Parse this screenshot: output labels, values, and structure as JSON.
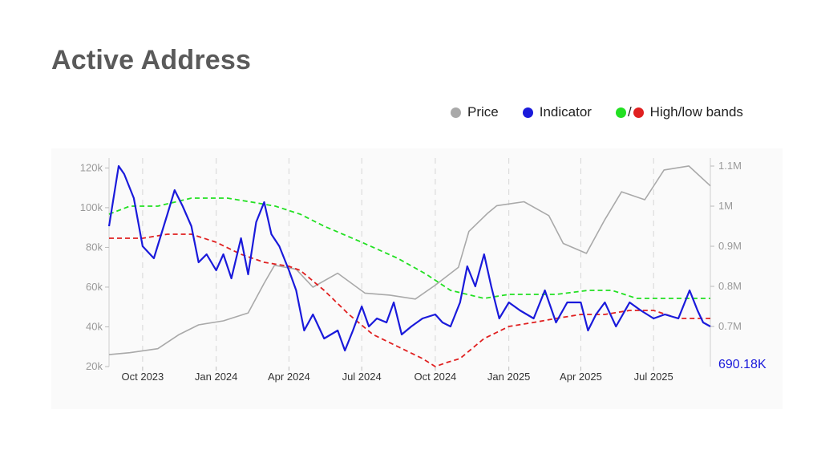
{
  "title": "Active Address",
  "legend": {
    "price": "Price",
    "indicator": "Indicator",
    "slash": "/",
    "bands": "High/low bands"
  },
  "colors": {
    "price": "#a9a9a9",
    "indicator": "#1a1adb",
    "high_band": "#22e022",
    "low_band": "#e02020",
    "title": "#5a5a5a",
    "last_value": "#1a1adb"
  },
  "chart_data": {
    "type": "line",
    "x_ticks": [
      "Oct 2023",
      "Jan 2024",
      "Apr 2024",
      "Jul 2024",
      "Oct 2024",
      "Jan 2025",
      "Apr 2025",
      "Jul 2025"
    ],
    "x_range": [
      "2023-08-20",
      "2025-09-10"
    ],
    "y_left": {
      "ticks": [
        "20k",
        "40k",
        "60k",
        "80k",
        "100k",
        "120k"
      ],
      "range": [
        20000,
        125000
      ]
    },
    "y_right": {
      "ticks": [
        "0.7M",
        "0.8M",
        "0.9M",
        "1M",
        "1.1M"
      ],
      "range": [
        0.6,
        1.12
      ]
    },
    "last_value_label": "690.18K",
    "series": [
      {
        "name": "Price",
        "axis": "left",
        "x": [
          "2023-08-20",
          "2023-09-15",
          "2023-10-20",
          "2023-11-15",
          "2023-12-10",
          "2024-01-10",
          "2024-02-10",
          "2024-03-01",
          "2024-03-14",
          "2024-04-10",
          "2024-05-01",
          "2024-06-01",
          "2024-07-05",
          "2024-08-05",
          "2024-09-06",
          "2024-10-01",
          "2024-10-30",
          "2024-11-12",
          "2024-12-05",
          "2024-12-17",
          "2025-01-20",
          "2025-02-20",
          "2025-03-10",
          "2025-04-08",
          "2025-05-01",
          "2025-05-22",
          "2025-06-20",
          "2025-07-14",
          "2025-08-14",
          "2025-09-10"
        ],
        "y": [
          26000,
          27000,
          29000,
          36000,
          41000,
          43000,
          47000,
          62000,
          71000,
          69000,
          60000,
          67000,
          57000,
          56000,
          54000,
          61000,
          70000,
          88000,
          97000,
          101000,
          103000,
          96000,
          82000,
          77000,
          94000,
          108000,
          104000,
          119000,
          121000,
          111000
        ]
      },
      {
        "name": "Indicator",
        "axis": "right",
        "x": [
          "2023-08-20",
          "2023-09-01",
          "2023-09-08",
          "2023-09-20",
          "2023-10-01",
          "2023-10-15",
          "2023-11-01",
          "2023-11-10",
          "2023-11-20",
          "2023-12-01",
          "2023-12-10",
          "2023-12-20",
          "2024-01-01",
          "2024-01-10",
          "2024-01-20",
          "2024-02-01",
          "2024-02-10",
          "2024-02-20",
          "2024-03-01",
          "2024-03-10",
          "2024-03-20",
          "2024-04-01",
          "2024-04-10",
          "2024-04-20",
          "2024-05-01",
          "2024-05-15",
          "2024-06-01",
          "2024-06-10",
          "2024-06-20",
          "2024-07-01",
          "2024-07-10",
          "2024-07-20",
          "2024-08-01",
          "2024-08-10",
          "2024-08-20",
          "2024-09-01",
          "2024-09-15",
          "2024-10-01",
          "2024-10-10",
          "2024-10-20",
          "2024-11-01",
          "2024-11-10",
          "2024-11-20",
          "2024-12-01",
          "2024-12-10",
          "2024-12-20",
          "2025-01-01",
          "2025-01-15",
          "2025-02-01",
          "2025-02-15",
          "2025-03-01",
          "2025-03-15",
          "2025-04-01",
          "2025-04-10",
          "2025-04-20",
          "2025-05-01",
          "2025-05-15",
          "2025-06-01",
          "2025-06-15",
          "2025-07-01",
          "2025-07-15",
          "2025-08-01",
          "2025-08-15",
          "2025-08-25",
          "2025-09-01",
          "2025-09-10"
        ],
        "y": [
          0.95,
          1.1,
          1.08,
          1.02,
          0.9,
          0.87,
          0.98,
          1.04,
          1.0,
          0.95,
          0.86,
          0.88,
          0.84,
          0.88,
          0.82,
          0.92,
          0.83,
          0.96,
          1.01,
          0.93,
          0.9,
          0.84,
          0.79,
          0.69,
          0.73,
          0.67,
          0.69,
          0.64,
          0.69,
          0.75,
          0.7,
          0.72,
          0.71,
          0.76,
          0.68,
          0.7,
          0.72,
          0.73,
          0.71,
          0.7,
          0.76,
          0.85,
          0.8,
          0.88,
          0.8,
          0.72,
          0.76,
          0.74,
          0.72,
          0.79,
          0.71,
          0.76,
          0.76,
          0.69,
          0.73,
          0.76,
          0.7,
          0.76,
          0.74,
          0.72,
          0.73,
          0.72,
          0.79,
          0.74,
          0.71,
          0.7
        ]
      },
      {
        "name": "High band",
        "axis": "right",
        "x": [
          "2023-08-20",
          "2023-09-15",
          "2023-10-20",
          "2023-12-01",
          "2024-01-15",
          "2024-02-15",
          "2024-03-15",
          "2024-04-15",
          "2024-05-15",
          "2024-07-01",
          "2024-08-15",
          "2024-09-20",
          "2024-10-20",
          "2024-12-01",
          "2025-01-01",
          "2025-02-01",
          "2025-03-01",
          "2025-04-10",
          "2025-05-10",
          "2025-06-10",
          "2025-07-15",
          "2025-09-10"
        ],
        "y": [
          0.98,
          1.0,
          1.0,
          1.02,
          1.02,
          1.01,
          1.0,
          0.98,
          0.95,
          0.91,
          0.87,
          0.83,
          0.79,
          0.77,
          0.78,
          0.78,
          0.78,
          0.79,
          0.79,
          0.77,
          0.77,
          0.77
        ]
      },
      {
        "name": "Low band",
        "axis": "right",
        "x": [
          "2023-08-20",
          "2023-10-01",
          "2023-11-01",
          "2023-12-01",
          "2024-01-01",
          "2024-02-01",
          "2024-03-01",
          "2024-04-01",
          "2024-04-15",
          "2024-05-15",
          "2024-06-15",
          "2024-07-15",
          "2024-08-15",
          "2024-09-15",
          "2024-10-01",
          "2024-10-15",
          "2024-11-01",
          "2024-12-01",
          "2025-01-01",
          "2025-02-01",
          "2025-03-01",
          "2025-04-01",
          "2025-05-01",
          "2025-06-01",
          "2025-07-01",
          "2025-08-01",
          "2025-09-10"
        ],
        "y": [
          0.92,
          0.92,
          0.93,
          0.93,
          0.91,
          0.88,
          0.86,
          0.85,
          0.84,
          0.79,
          0.73,
          0.68,
          0.65,
          0.62,
          0.6,
          0.61,
          0.62,
          0.67,
          0.7,
          0.71,
          0.72,
          0.73,
          0.73,
          0.74,
          0.74,
          0.72,
          0.72
        ]
      }
    ],
    "legend_position": "top-right",
    "grid": "vertical-dashed"
  }
}
